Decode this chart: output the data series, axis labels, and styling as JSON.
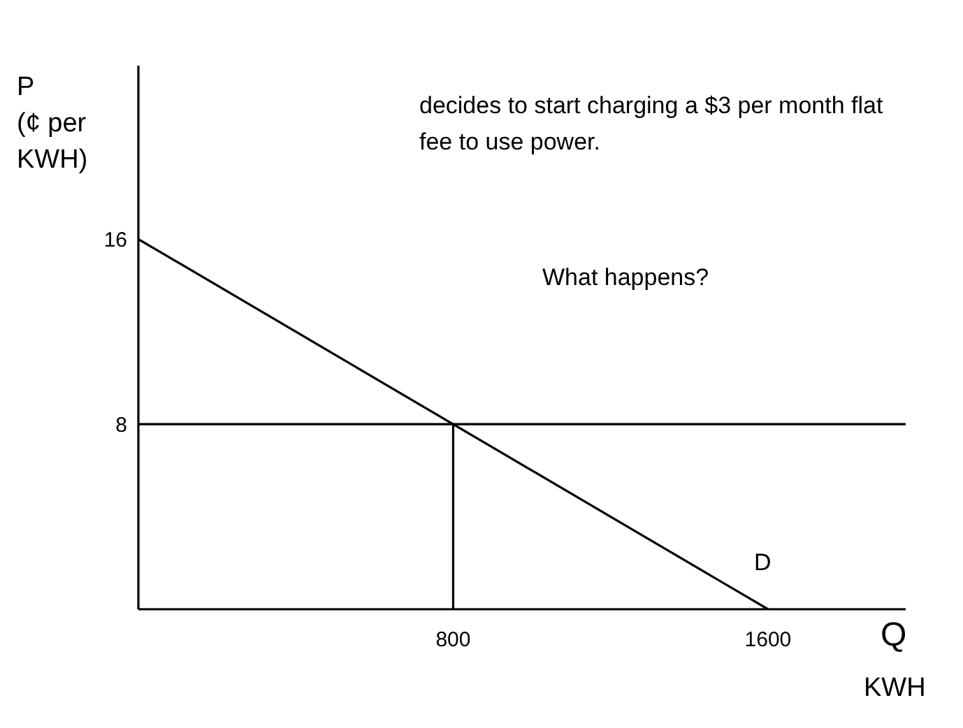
{
  "chart_data": {
    "type": "line",
    "xlabel": "Q\nKWH",
    "ylabel": "P\n(¢ per\nKWH)",
    "annotations": [
      "decides to start charging a $3 per month flat fee to use power.",
      "What happens?"
    ],
    "series": [
      {
        "name": "D",
        "color": "#000000",
        "x": [
          0,
          1600
        ],
        "values": [
          16,
          0
        ]
      },
      {
        "color": "#000000",
        "x": [
          0,
          1950
        ],
        "values": [
          8,
          8
        ]
      },
      {
        "color": "#000000",
        "x": [
          800,
          800
        ],
        "values": [
          0,
          8
        ]
      }
    ],
    "xlim": [
      0,
      1950
    ],
    "ylim": [
      0,
      23.5
    ],
    "xticks": [
      800,
      1600
    ],
    "yticks": [
      8,
      16
    ],
    "grid": false,
    "legend": false
  }
}
